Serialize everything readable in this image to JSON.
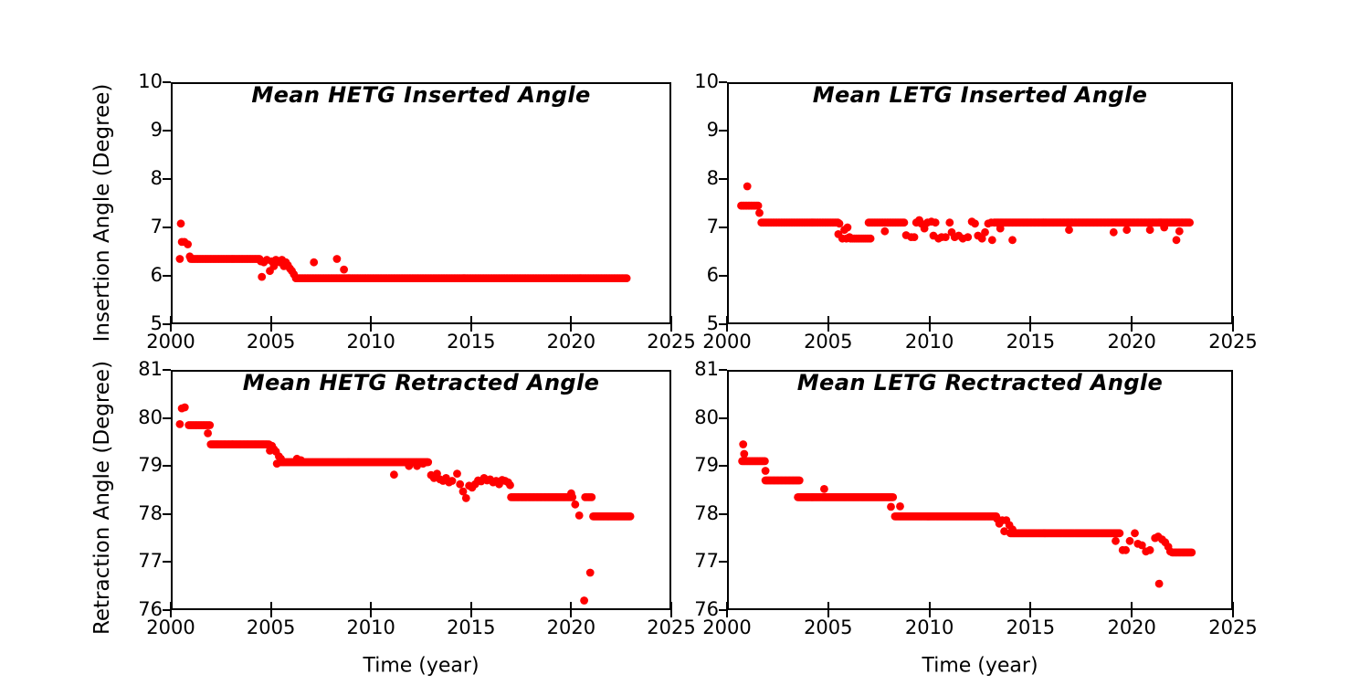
{
  "figure": {
    "background": "#ffffff",
    "marker_color": "#ff0000",
    "axis_color": "#000000"
  },
  "labels": {
    "time_axis": "Time (year)",
    "insertion_axis": "Insertion Angle (Degree)",
    "retraction_axis": "Retraction Angle (Degree)"
  },
  "chart_data": [
    {
      "type": "scatter",
      "title": "Mean HETG Inserted Angle",
      "xlabel": "",
      "ylabel": "Insertion Angle (Degree)",
      "xlim": [
        2000,
        2025
      ],
      "ylim": [
        5,
        10
      ],
      "xticks": [
        2000,
        2005,
        2010,
        2015,
        2020,
        2025
      ],
      "yticks": [
        5,
        6,
        7,
        8,
        9,
        10
      ],
      "grid": false,
      "legend": null,
      "marker_color": "#ff0000",
      "bands": [
        {
          "x0": 2001.0,
          "x1": 2004.45,
          "y": 6.35,
          "step": 0.07
        },
        {
          "x0": 2006.25,
          "x1": 2022.8,
          "y": 5.95,
          "step": 0.07
        }
      ],
      "points": [
        [
          2000.45,
          6.35
        ],
        [
          2000.5,
          7.08
        ],
        [
          2000.55,
          6.7
        ],
        [
          2000.68,
          6.7
        ],
        [
          2000.85,
          6.65
        ],
        [
          2000.95,
          6.4
        ],
        [
          2004.5,
          6.3
        ],
        [
          2004.55,
          5.98
        ],
        [
          2004.65,
          6.28
        ],
        [
          2004.8,
          6.33
        ],
        [
          2004.95,
          6.1
        ],
        [
          2005.05,
          6.3
        ],
        [
          2005.15,
          6.2
        ],
        [
          2005.25,
          6.33
        ],
        [
          2005.35,
          6.3
        ],
        [
          2005.45,
          6.28
        ],
        [
          2005.55,
          6.33
        ],
        [
          2005.65,
          6.2
        ],
        [
          2005.75,
          6.28
        ],
        [
          2005.85,
          6.22
        ],
        [
          2005.95,
          6.15
        ],
        [
          2006.05,
          6.1
        ],
        [
          2006.15,
          6.03
        ],
        [
          2007.15,
          6.28
        ],
        [
          2008.3,
          6.35
        ],
        [
          2008.65,
          6.13
        ]
      ]
    },
    {
      "type": "scatter",
      "title": "Mean LETG Inserted Angle",
      "xlabel": "",
      "ylabel": "",
      "xlim": [
        2000,
        2025
      ],
      "ylim": [
        5,
        10
      ],
      "xticks": [
        2000,
        2005,
        2010,
        2015,
        2020,
        2025
      ],
      "yticks": [
        5,
        6,
        7,
        8,
        9,
        10
      ],
      "grid": false,
      "legend": null,
      "marker_color": "#ff0000",
      "bands": [
        {
          "x0": 2000.7,
          "x1": 2001.55,
          "y": 7.45,
          "step": 0.07
        },
        {
          "x0": 2001.7,
          "x1": 2005.45,
          "y": 7.1,
          "step": 0.07
        },
        {
          "x0": 2006.1,
          "x1": 2007.1,
          "y": 6.77,
          "step": 0.09
        },
        {
          "x0": 2007.0,
          "x1": 2008.75,
          "y": 7.1,
          "step": 0.07
        },
        {
          "x0": 2013.2,
          "x1": 2022.85,
          "y": 7.1,
          "step": 0.06
        }
      ],
      "points": [
        [
          2001.0,
          7.85
        ],
        [
          2001.6,
          7.3
        ],
        [
          2005.5,
          6.86
        ],
        [
          2005.55,
          7.08
        ],
        [
          2005.7,
          6.77
        ],
        [
          2005.8,
          6.95
        ],
        [
          2005.9,
          6.77
        ],
        [
          2005.95,
          7.0
        ],
        [
          2006.05,
          6.8
        ],
        [
          2007.8,
          6.92
        ],
        [
          2008.85,
          6.84
        ],
        [
          2009.1,
          6.8
        ],
        [
          2009.25,
          6.8
        ],
        [
          2009.35,
          7.1
        ],
        [
          2009.5,
          7.15
        ],
        [
          2009.6,
          7.08
        ],
        [
          2009.75,
          6.98
        ],
        [
          2009.9,
          7.1
        ],
        [
          2010.1,
          7.12
        ],
        [
          2010.3,
          7.1
        ],
        [
          2010.2,
          6.83
        ],
        [
          2010.45,
          6.77
        ],
        [
          2010.6,
          6.8
        ],
        [
          2010.8,
          6.8
        ],
        [
          2011.0,
          7.1
        ],
        [
          2011.1,
          6.9
        ],
        [
          2011.25,
          6.8
        ],
        [
          2011.45,
          6.83
        ],
        [
          2011.65,
          6.77
        ],
        [
          2011.9,
          6.8
        ],
        [
          2012.1,
          7.12
        ],
        [
          2012.25,
          7.08
        ],
        [
          2012.4,
          6.83
        ],
        [
          2012.6,
          6.77
        ],
        [
          2012.75,
          6.9
        ],
        [
          2012.9,
          7.08
        ],
        [
          2013.05,
          7.1
        ],
        [
          2013.1,
          6.74
        ],
        [
          2014.1,
          6.74
        ],
        [
          2022.2,
          6.74
        ],
        [
          2013.5,
          6.98
        ],
        [
          2016.9,
          6.95
        ],
        [
          2019.1,
          6.9
        ],
        [
          2019.75,
          6.95
        ],
        [
          2020.9,
          6.95
        ],
        [
          2021.6,
          7.0
        ],
        [
          2022.35,
          6.92
        ]
      ]
    },
    {
      "type": "scatter",
      "title": "Mean HETG Retracted Angle",
      "xlabel": "Time (year)",
      "ylabel": "Retraction Angle (Degree)",
      "xlim": [
        2000,
        2025
      ],
      "ylim": [
        76,
        81
      ],
      "xticks": [
        2000,
        2005,
        2010,
        2015,
        2020,
        2025
      ],
      "yticks": [
        76,
        77,
        78,
        79,
        80,
        81
      ],
      "grid": false,
      "legend": null,
      "marker_color": "#ff0000",
      "bands": [
        {
          "x0": 2000.9,
          "x1": 2001.95,
          "y": 79.85,
          "step": 0.07
        },
        {
          "x0": 2002.0,
          "x1": 2004.85,
          "y": 79.45,
          "step": 0.06
        },
        {
          "x0": 2005.45,
          "x1": 2012.85,
          "y": 79.08,
          "step": 0.05
        },
        {
          "x0": 2017.0,
          "x1": 2020.05,
          "y": 78.35,
          "step": 0.06
        },
        {
          "x0": 2020.7,
          "x1": 2021.05,
          "y": 78.35,
          "step": 0.08
        },
        {
          "x0": 2021.1,
          "x1": 2022.95,
          "y": 77.95,
          "step": 0.05
        }
      ],
      "points": [
        [
          2000.55,
          80.2
        ],
        [
          2000.7,
          80.22
        ],
        [
          2000.45,
          79.87
        ],
        [
          2001.85,
          79.68
        ],
        [
          2004.9,
          79.45
        ],
        [
          2004.95,
          79.32
        ],
        [
          2005.05,
          79.42
        ],
        [
          2005.15,
          79.35
        ],
        [
          2005.25,
          79.3
        ],
        [
          2005.3,
          79.05
        ],
        [
          2005.4,
          79.2
        ],
        [
          2005.5,
          79.15
        ],
        [
          2006.3,
          79.15
        ],
        [
          2006.5,
          79.12
        ],
        [
          2011.15,
          78.82
        ],
        [
          2011.9,
          79.0
        ],
        [
          2012.3,
          79.0
        ],
        [
          2012.6,
          79.05
        ],
        [
          2013.0,
          78.81
        ],
        [
          2013.15,
          78.75
        ],
        [
          2013.3,
          78.84
        ],
        [
          2013.45,
          78.72
        ],
        [
          2013.6,
          78.69
        ],
        [
          2013.75,
          78.75
        ],
        [
          2013.9,
          78.66
        ],
        [
          2014.05,
          78.69
        ],
        [
          2014.3,
          78.84
        ],
        [
          2014.45,
          78.62
        ],
        [
          2014.6,
          78.47
        ],
        [
          2014.75,
          78.33
        ],
        [
          2014.9,
          78.59
        ],
        [
          2015.05,
          78.55
        ],
        [
          2015.2,
          78.62
        ],
        [
          2015.35,
          78.7
        ],
        [
          2015.5,
          78.68
        ],
        [
          2015.65,
          78.75
        ],
        [
          2015.8,
          78.7
        ],
        [
          2015.95,
          78.72
        ],
        [
          2016.1,
          78.66
        ],
        [
          2016.25,
          78.69
        ],
        [
          2016.4,
          78.62
        ],
        [
          2016.55,
          78.71
        ],
        [
          2016.7,
          78.69
        ],
        [
          2016.85,
          78.66
        ],
        [
          2016.95,
          78.6
        ],
        [
          2020.0,
          78.43
        ],
        [
          2020.2,
          78.2
        ],
        [
          2020.4,
          77.97
        ],
        [
          2020.65,
          76.2
        ],
        [
          2020.95,
          76.78
        ]
      ]
    },
    {
      "type": "scatter",
      "title": "Mean LETG Rectracted Angle",
      "xlabel": "Time (year)",
      "ylabel": "",
      "xlim": [
        2000,
        2025
      ],
      "ylim": [
        76,
        81
      ],
      "xticks": [
        2000,
        2005,
        2010,
        2015,
        2020,
        2025
      ],
      "yticks": [
        76,
        77,
        78,
        79,
        80,
        81
      ],
      "grid": false,
      "legend": null,
      "marker_color": "#ff0000",
      "bands": [
        {
          "x0": 2000.75,
          "x1": 2001.85,
          "y": 79.1,
          "step": 0.07
        },
        {
          "x0": 2001.9,
          "x1": 2003.6,
          "y": 78.7,
          "step": 0.06
        },
        {
          "x0": 2003.5,
          "x1": 2008.2,
          "y": 78.35,
          "step": 0.05
        },
        {
          "x0": 2008.3,
          "x1": 2013.3,
          "y": 77.95,
          "step": 0.05
        },
        {
          "x0": 2014.0,
          "x1": 2019.4,
          "y": 77.6,
          "step": 0.05
        },
        {
          "x0": 2022.0,
          "x1": 2022.95,
          "y": 77.2,
          "step": 0.06
        }
      ],
      "points": [
        [
          2000.8,
          79.45
        ],
        [
          2000.85,
          79.25
        ],
        [
          2001.9,
          78.9
        ],
        [
          2004.8,
          78.52
        ],
        [
          2008.1,
          78.15
        ],
        [
          2008.55,
          78.16
        ],
        [
          2013.35,
          77.9
        ],
        [
          2013.45,
          77.8
        ],
        [
          2013.6,
          77.87
        ],
        [
          2013.7,
          77.64
        ],
        [
          2013.8,
          77.87
        ],
        [
          2013.95,
          77.77
        ],
        [
          2014.1,
          77.68
        ],
        [
          2019.2,
          77.44
        ],
        [
          2019.55,
          77.25
        ],
        [
          2019.7,
          77.25
        ],
        [
          2019.9,
          77.44
        ],
        [
          2020.15,
          77.6
        ],
        [
          2020.3,
          77.38
        ],
        [
          2020.5,
          77.35
        ],
        [
          2020.7,
          77.22
        ],
        [
          2020.9,
          77.25
        ],
        [
          2021.15,
          77.5
        ],
        [
          2021.3,
          77.53
        ],
        [
          2021.5,
          77.47
        ],
        [
          2021.65,
          77.41
        ],
        [
          2021.8,
          77.32
        ],
        [
          2021.9,
          77.22
        ],
        [
          2021.35,
          76.55
        ]
      ]
    }
  ]
}
